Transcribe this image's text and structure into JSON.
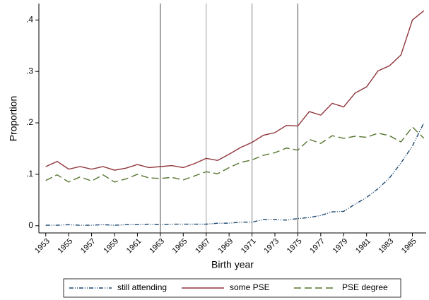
{
  "chart_data": {
    "type": "line",
    "x_label": "Birth year",
    "y_label": "Proportion",
    "x": [
      1953,
      1954,
      1955,
      1956,
      1957,
      1958,
      1959,
      1960,
      1961,
      1962,
      1963,
      1964,
      1965,
      1966,
      1967,
      1968,
      1969,
      1970,
      1971,
      1972,
      1973,
      1974,
      1975,
      1976,
      1977,
      1978,
      1979,
      1980,
      1981,
      1982,
      1983,
      1984,
      1985,
      1986
    ],
    "series": [
      {
        "name": "still attending",
        "color": "#1a476f",
        "dash": "dash-dot-dot",
        "values": [
          0.001,
          0.001,
          0.002,
          0.001,
          0.001,
          0.002,
          0.001,
          0.002,
          0.002,
          0.003,
          0.002,
          0.003,
          0.003,
          0.003,
          0.003,
          0.005,
          0.005,
          0.007,
          0.007,
          0.012,
          0.012,
          0.011,
          0.014,
          0.016,
          0.02,
          0.027,
          0.028,
          0.042,
          0.055,
          0.072,
          0.093,
          0.122,
          0.155,
          0.2
        ]
      },
      {
        "name": "some PSE",
        "color": "#90353b",
        "dash": "solid",
        "values": [
          0.115,
          0.125,
          0.11,
          0.115,
          0.11,
          0.115,
          0.108,
          0.112,
          0.119,
          0.113,
          0.115,
          0.117,
          0.113,
          0.121,
          0.131,
          0.127,
          0.139,
          0.152,
          0.162,
          0.176,
          0.181,
          0.195,
          0.194,
          0.222,
          0.215,
          0.238,
          0.231,
          0.258,
          0.27,
          0.301,
          0.311,
          0.332,
          0.4,
          0.418
        ]
      },
      {
        "name": "PSE degree",
        "color": "#55752f",
        "dash": "long-dash",
        "values": [
          0.088,
          0.099,
          0.085,
          0.095,
          0.087,
          0.099,
          0.085,
          0.091,
          0.1,
          0.093,
          0.092,
          0.094,
          0.089,
          0.097,
          0.105,
          0.101,
          0.113,
          0.123,
          0.128,
          0.137,
          0.142,
          0.151,
          0.147,
          0.168,
          0.16,
          0.175,
          0.17,
          0.174,
          0.172,
          0.18,
          0.175,
          0.163,
          0.192,
          0.17
        ]
      }
    ],
    "xlim": [
      1952.4,
      1986.2
    ],
    "ylim": [
      -0.014,
      0.432
    ],
    "xticks": [
      1953,
      1955,
      1957,
      1959,
      1961,
      1963,
      1965,
      1967,
      1969,
      1971,
      1973,
      1975,
      1977,
      1979,
      1981,
      1983,
      1985
    ],
    "yticks": [
      0,
      {
        "value": 0.1,
        "label": ".1"
      },
      {
        "value": 0.2,
        "label": ".2"
      },
      {
        "value": 0.3,
        "label": ".3"
      },
      {
        "value": 0.4,
        "label": ".4"
      }
    ],
    "reference_lines": [
      {
        "x": 1963,
        "color": "#666666"
      },
      {
        "x": 1967,
        "color": "#b0b0b0"
      },
      {
        "x": 1971,
        "color": "#999999"
      },
      {
        "x": 1975,
        "color": "#666666"
      }
    ],
    "legend": "bottom"
  }
}
